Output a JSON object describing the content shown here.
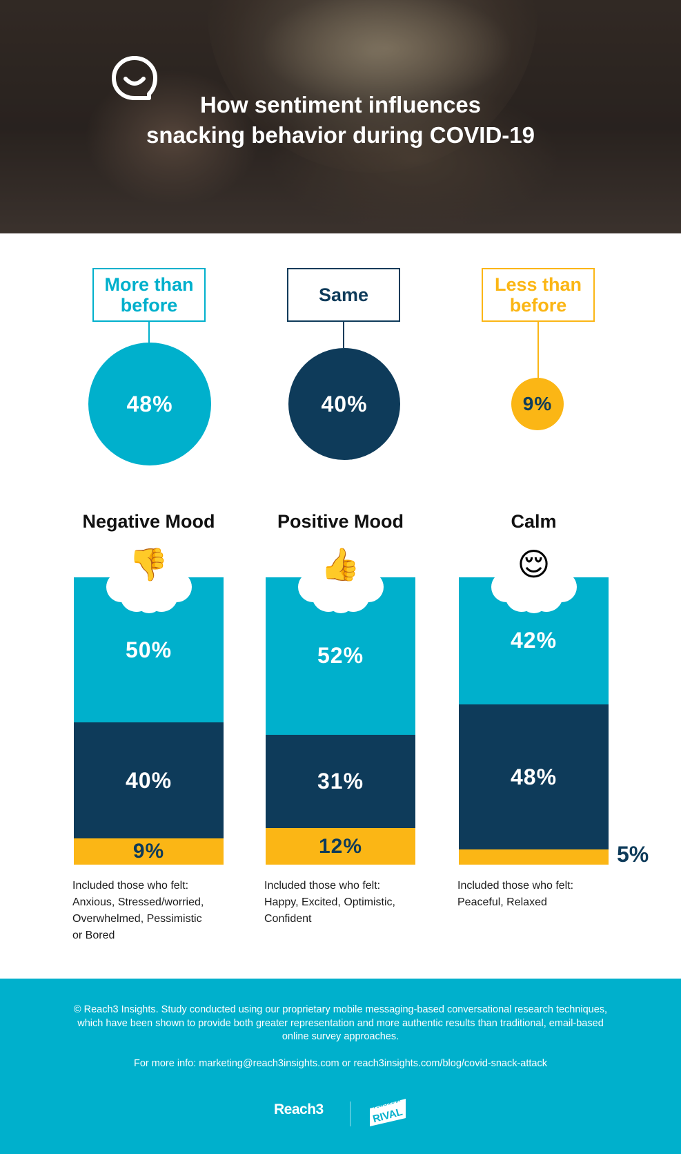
{
  "hero": {
    "title_line1": "How sentiment influences",
    "title_line2": "snacking behavior during COVID-19"
  },
  "overall": [
    {
      "label_line1": "More than",
      "label_line2": "before",
      "value": "48%"
    },
    {
      "label_line1": "Same",
      "label_line2": "",
      "value": "40%"
    },
    {
      "label_line1": "Less than",
      "label_line2": "before",
      "value": "9%"
    }
  ],
  "moods": [
    {
      "title": "Negative Mood",
      "emoji": "👎",
      "emoji_name": "thumbs-down-icon",
      "labels": [
        "50%",
        "40%",
        "9%"
      ],
      "desc": [
        "Included those who felt:",
        "Anxious, Stressed/worried,",
        "Overwhelmed, Pessimistic",
        "or Bored"
      ]
    },
    {
      "title": "Positive Mood",
      "emoji": "👍",
      "emoji_name": "thumbs-up-icon",
      "labels": [
        "52%",
        "31%",
        "12%"
      ],
      "desc": [
        "Included those who felt:",
        "Happy, Excited, Optimistic,",
        "Confident"
      ]
    },
    {
      "title": "Calm",
      "emoji": "😌",
      "emoji_name": "relieved-face-icon",
      "labels": [
        "42%",
        "48%",
        "5%"
      ],
      "desc": [
        "Included those who felt:",
        "Peaceful, Relaxed"
      ]
    }
  ],
  "chart_data": [
    {
      "type": "bubble",
      "categories": [
        "More than before",
        "Same",
        "Less than before"
      ],
      "values": [
        48,
        40,
        9
      ],
      "colors": [
        "#00b0cc",
        "#0e3b5a",
        "#fbb615"
      ]
    },
    {
      "type": "bar",
      "stacked": true,
      "categories": [
        "Negative Mood",
        "Positive Mood",
        "Calm"
      ],
      "series": [
        {
          "name": "More than before",
          "values": [
            50,
            52,
            42
          ],
          "color": "#00b0cc"
        },
        {
          "name": "Same",
          "values": [
            40,
            31,
            48
          ],
          "color": "#0e3b5a"
        },
        {
          "name": "Less than before",
          "values": [
            9,
            12,
            5
          ],
          "color": "#fbb615"
        }
      ]
    }
  ],
  "footer": {
    "legal": "© Reach3 Insights. Study conducted using our proprietary mobile messaging-based conversational research techniques, which have been shown to provide both greater representation and more authentic results than traditional, email-based online survey approaches.",
    "info": "For more info: marketing@reach3insights.com or reach3insights.com/blog/covid-snack-attack",
    "brand_a": "Reach3",
    "brand_b_top": "POWERED BY",
    "brand_b_main": "RIVAL"
  },
  "colors": {
    "teal": "#00b0cc",
    "navy": "#0e3b5a",
    "yellow": "#fbb615"
  }
}
